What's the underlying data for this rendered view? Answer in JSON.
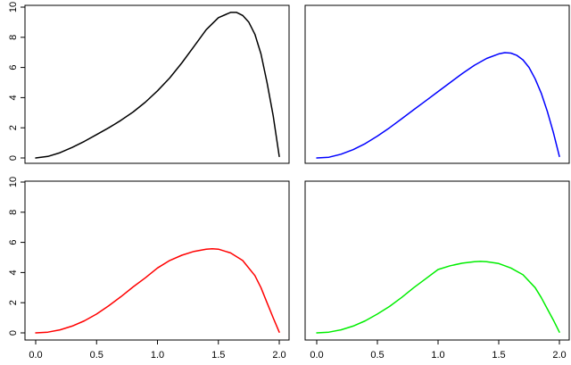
{
  "chart_data": [
    {
      "type": "line",
      "title": "",
      "xlabel": "",
      "ylabel": "",
      "xlim": [
        0,
        2
      ],
      "ylim": [
        0,
        10
      ],
      "xticks": [],
      "xtick_labels": [],
      "yticks": [
        0,
        2,
        4,
        6,
        8,
        10
      ],
      "ytick_labels": [
        "0",
        "2",
        "4",
        "6",
        "8",
        "10"
      ],
      "grid": false,
      "series": [
        {
          "color": "#000000",
          "x": [
            0.0,
            0.1,
            0.2,
            0.3,
            0.4,
            0.5,
            0.6,
            0.7,
            0.8,
            0.9,
            1.0,
            1.1,
            1.2,
            1.3,
            1.4,
            1.5,
            1.6,
            1.65,
            1.7,
            1.75,
            1.8,
            1.85,
            1.9,
            1.95,
            2.0
          ],
          "y": [
            0.0,
            0.1,
            0.35,
            0.7,
            1.1,
            1.55,
            2.0,
            2.5,
            3.05,
            3.7,
            4.45,
            5.3,
            6.3,
            7.4,
            8.5,
            9.3,
            9.65,
            9.65,
            9.45,
            9.0,
            8.2,
            6.9,
            5.0,
            2.8,
            0.1
          ]
        }
      ]
    },
    {
      "type": "line",
      "title": "",
      "xlabel": "",
      "ylabel": "",
      "xlim": [
        0,
        2
      ],
      "ylim": [
        0,
        10
      ],
      "xticks": [],
      "xtick_labels": [],
      "yticks": [],
      "ytick_labels": [],
      "grid": false,
      "series": [
        {
          "color": "#0000ff",
          "x": [
            0.0,
            0.1,
            0.2,
            0.3,
            0.4,
            0.5,
            0.6,
            0.7,
            0.8,
            0.9,
            1.0,
            1.1,
            1.2,
            1.3,
            1.4,
            1.5,
            1.55,
            1.6,
            1.65,
            1.7,
            1.75,
            1.8,
            1.85,
            1.9,
            1.95,
            2.0
          ],
          "y": [
            0.0,
            0.05,
            0.25,
            0.55,
            0.95,
            1.45,
            2.0,
            2.6,
            3.2,
            3.8,
            4.4,
            5.0,
            5.6,
            6.15,
            6.6,
            6.9,
            6.98,
            6.95,
            6.8,
            6.5,
            6.0,
            5.25,
            4.3,
            3.1,
            1.7,
            0.1
          ]
        }
      ]
    },
    {
      "type": "line",
      "title": "",
      "xlabel": "",
      "ylabel": "",
      "xlim": [
        0,
        2
      ],
      "ylim": [
        0,
        10
      ],
      "xticks": [
        0.0,
        0.5,
        1.0,
        1.5,
        2.0
      ],
      "xtick_labels": [
        "0.0",
        "0.5",
        "1.0",
        "1.5",
        "2.0"
      ],
      "yticks": [
        0,
        2,
        4,
        6,
        8,
        10
      ],
      "ytick_labels": [
        "0",
        "2",
        "4",
        "6",
        "8",
        "10"
      ],
      "grid": false,
      "series": [
        {
          "color": "#ff0000",
          "x": [
            0.0,
            0.1,
            0.2,
            0.3,
            0.4,
            0.5,
            0.6,
            0.7,
            0.8,
            0.9,
            1.0,
            1.1,
            1.2,
            1.3,
            1.4,
            1.45,
            1.5,
            1.6,
            1.7,
            1.8,
            1.85,
            1.9,
            1.95,
            2.0
          ],
          "y": [
            0.0,
            0.05,
            0.2,
            0.45,
            0.8,
            1.25,
            1.8,
            2.4,
            3.05,
            3.65,
            4.3,
            4.8,
            5.15,
            5.4,
            5.55,
            5.58,
            5.55,
            5.3,
            4.8,
            3.8,
            3.0,
            2.0,
            1.0,
            0.05
          ]
        }
      ]
    },
    {
      "type": "line",
      "title": "",
      "xlabel": "",
      "ylabel": "",
      "xlim": [
        0,
        2
      ],
      "ylim": [
        0,
        10
      ],
      "xticks": [
        0.0,
        0.5,
        1.0,
        1.5,
        2.0
      ],
      "xtick_labels": [
        "0.0",
        "0.5",
        "1.0",
        "1.5",
        "2.0"
      ],
      "yticks": [],
      "ytick_labels": [],
      "grid": false,
      "series": [
        {
          "color": "#00ee00",
          "x": [
            0.0,
            0.1,
            0.2,
            0.3,
            0.4,
            0.5,
            0.6,
            0.7,
            0.8,
            0.9,
            1.0,
            1.1,
            1.2,
            1.3,
            1.35,
            1.4,
            1.5,
            1.6,
            1.7,
            1.8,
            1.85,
            1.9,
            1.95,
            2.0
          ],
          "y": [
            0.0,
            0.05,
            0.2,
            0.45,
            0.8,
            1.25,
            1.75,
            2.35,
            3.0,
            3.6,
            4.2,
            4.45,
            4.62,
            4.72,
            4.74,
            4.72,
            4.6,
            4.3,
            3.85,
            3.0,
            2.35,
            1.6,
            0.85,
            0.05
          ]
        }
      ]
    }
  ]
}
